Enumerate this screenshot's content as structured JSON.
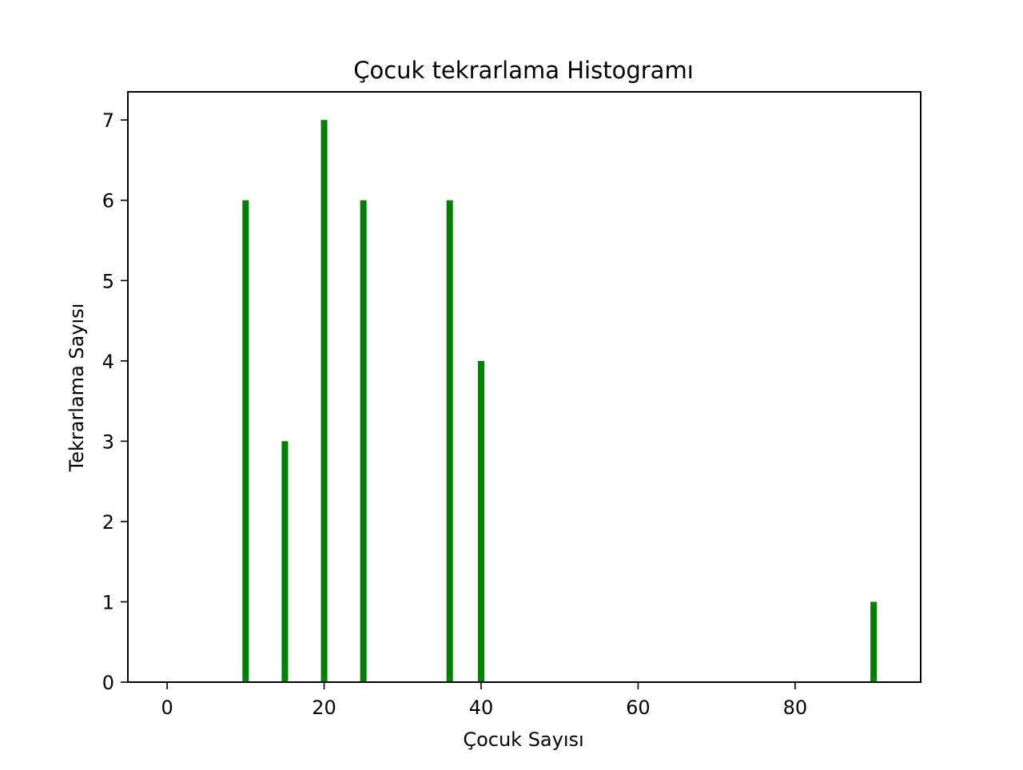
{
  "chart_data": {
    "type": "bar",
    "title": "Çocuk tekrarlama Histogramı",
    "xlabel": "Çocuk Sayısı",
    "ylabel": "Tekrarlama Sayısı",
    "xlim": [
      -5,
      96
    ],
    "ylim": [
      0,
      7.35
    ],
    "xticks": [
      0,
      20,
      40,
      60,
      80
    ],
    "yticks": [
      0,
      1,
      2,
      3,
      4,
      5,
      6,
      7
    ],
    "bar_color": "#008000",
    "grid": false,
    "bars": [
      {
        "x": 10,
        "value": 6
      },
      {
        "x": 15,
        "value": 3
      },
      {
        "x": 20,
        "value": 7
      },
      {
        "x": 25,
        "value": 6
      },
      {
        "x": 36,
        "value": 6
      },
      {
        "x": 40,
        "value": 4
      },
      {
        "x": 90,
        "value": 1
      }
    ]
  }
}
